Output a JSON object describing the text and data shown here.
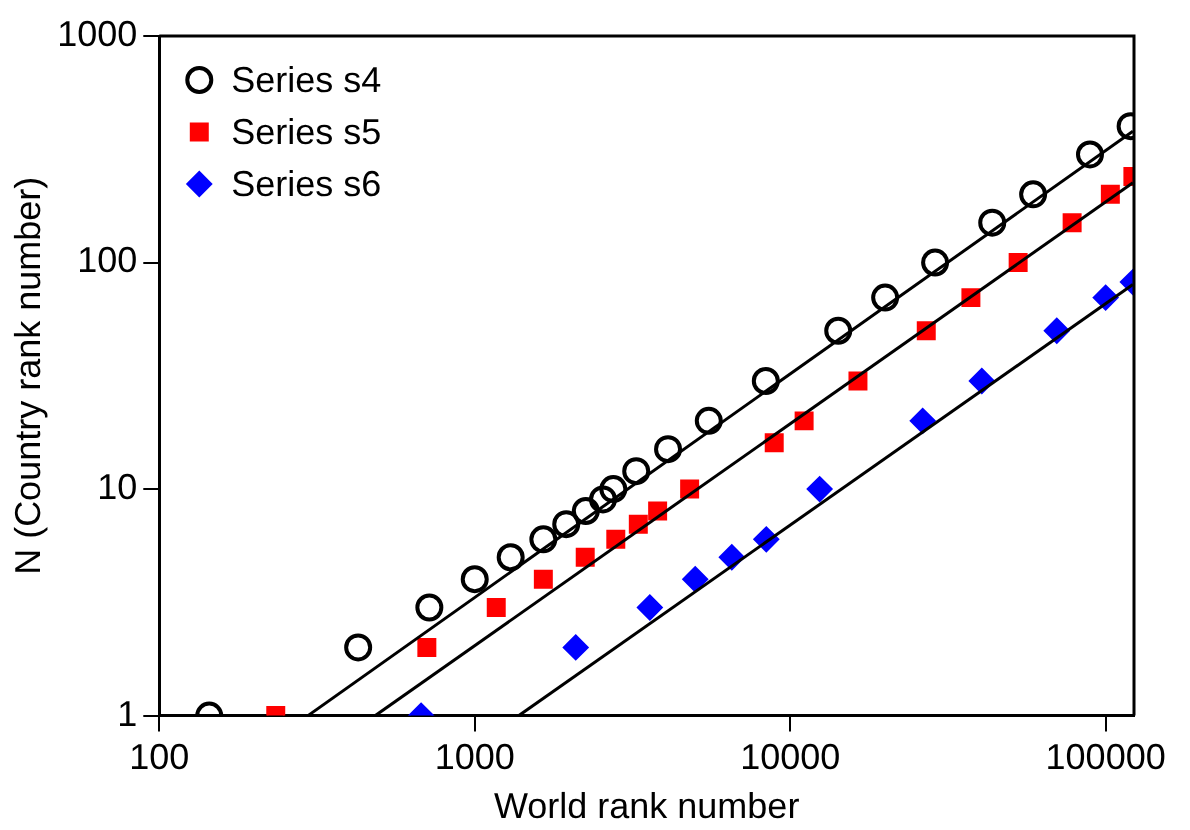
{
  "chart_data": {
    "type": "scatter",
    "xlabel": "World rank number",
    "ylabel": "N (Country rank number)",
    "log": "xy",
    "xlim": [
      100,
      123000
    ],
    "ylim": [
      1,
      1000
    ],
    "xticks": [
      100,
      1000,
      10000,
      100000
    ],
    "yticks": [
      1,
      10,
      100,
      1000
    ],
    "grid": false,
    "legend": "top left",
    "series": [
      {
        "name": "Series s4",
        "color": "#000000",
        "marker": "circle",
        "x": [
          144,
          427,
          718,
          1000,
          1300,
          1650,
          1950,
          2250,
          2550,
          2750,
          3250,
          4100,
          5520,
          8370,
          14200,
          20000,
          28800,
          43700,
          58900,
          89200,
          120000
        ],
        "values": [
          1,
          2,
          3,
          4,
          5,
          6,
          7,
          8,
          9,
          10,
          12,
          15,
          20,
          30,
          50,
          70,
          100,
          150,
          200,
          300,
          400
        ]
      },
      {
        "name": "Series s5",
        "color": "#ff0000",
        "marker": "square",
        "x": [
          234,
          705,
          1170,
          1650,
          2240,
          2800,
          3300,
          3800,
          4800,
          8900,
          11070,
          16400,
          27000,
          37400,
          52800,
          78300,
          103500,
          122000
        ],
        "values": [
          1,
          2,
          3,
          4,
          5,
          6,
          7,
          8,
          10,
          16,
          20,
          30,
          50,
          70,
          100,
          150,
          200,
          240
        ]
      },
      {
        "name": "Series s6",
        "color": "#0000ff",
        "marker": "diamond",
        "x": [
          676,
          2090,
          3590,
          5000,
          6530,
          8400,
          12400,
          26300,
          40500,
          70000,
          100000,
          122000
        ],
        "values": [
          1,
          2,
          3,
          4,
          5,
          6,
          10,
          20,
          30,
          50,
          70,
          82
        ]
      },
      {
        "type": "line",
        "color": "#000000",
        "marker": "none",
        "x": [
          296,
          122000
        ],
        "values": [
          1,
          380
        ]
      },
      {
        "type": "line",
        "color": "#000000",
        "marker": "none",
        "x": [
          484,
          122000
        ],
        "values": [
          1,
          225
        ]
      },
      {
        "type": "line",
        "color": "#000000",
        "marker": "none",
        "x": [
          1380,
          122000
        ],
        "values": [
          1,
          80
        ]
      }
    ]
  }
}
